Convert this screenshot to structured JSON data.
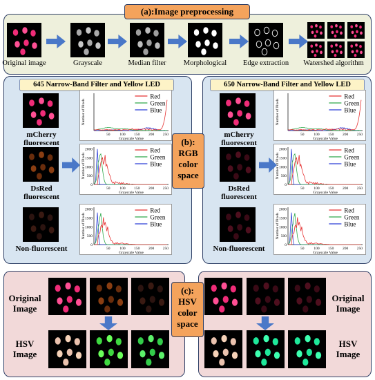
{
  "section_a": {
    "title": "(a):Image preprocessing",
    "steps": [
      "Original image",
      "Grayscale",
      "Median filter",
      "Morphological",
      "Edge extraction",
      "Watershed algorithm"
    ]
  },
  "section_b": {
    "title_lines": [
      "(b):",
      "RGB",
      "color",
      "space"
    ],
    "left_header": "645 Narrow-Band Filter and Yellow LED",
    "right_header": "650 Narrow-Band Filter and Yellow LED",
    "samples": [
      {
        "line1": "mCherry",
        "line2": "fluorescent"
      },
      {
        "line1": "DsRed",
        "line2": "fluorescent"
      },
      {
        "line1": "Non-fluorescent",
        "line2": ""
      }
    ],
    "colors": {
      "red": "#e53030",
      "green": "#2ea84a",
      "blue": "#2c3fd8"
    }
  },
  "chart_data": {
    "type": "line",
    "xlabel": "Grayscale Value",
    "ylabel": "Number of Pixels",
    "xticks": [
      "50",
      "100",
      "150",
      "200",
      "250"
    ],
    "yticks": [
      "0",
      "500",
      "1000",
      "1500",
      "2000"
    ],
    "legend": [
      "Red",
      "Green",
      "Blue"
    ]
  },
  "section_c": {
    "title_lines": [
      "(c):",
      "HSV",
      "color",
      "space"
    ],
    "left_labels": {
      "original": [
        "Original",
        "Image"
      ],
      "hsv": [
        "HSV",
        "Image"
      ]
    },
    "right_labels": {
      "original": [
        "Original",
        "Image"
      ],
      "hsv": [
        "HSV",
        "Image"
      ]
    }
  }
}
